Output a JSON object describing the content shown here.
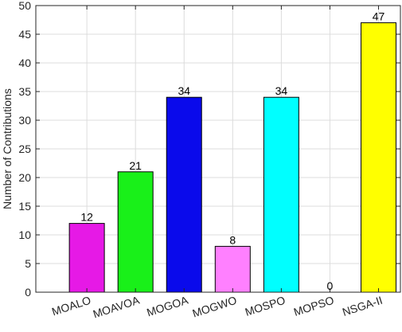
{
  "chart_data": {
    "type": "bar",
    "title": "",
    "xlabel": "",
    "ylabel": "Number of Contributions",
    "ylim": [
      0,
      50
    ],
    "yticks": [
      0,
      5,
      10,
      15,
      20,
      25,
      30,
      35,
      40,
      45,
      50
    ],
    "grid": true,
    "categories": [
      "MOALO",
      "MOAVOA",
      "MOGOA",
      "MOGWO",
      "MOSPO",
      "MOPSO",
      "NSGA-II"
    ],
    "values": [
      12,
      21,
      34,
      8,
      34,
      0,
      47
    ],
    "colors": [
      "#e619e6",
      "#19f019",
      "#0a0aeb",
      "#ff80ff",
      "#00ffff",
      "#ffffff",
      "#ffff00"
    ],
    "data_labels": [
      "12",
      "21",
      "34",
      "8",
      "34",
      "0",
      "47"
    ],
    "tick_label_rotation": "slanted"
  }
}
